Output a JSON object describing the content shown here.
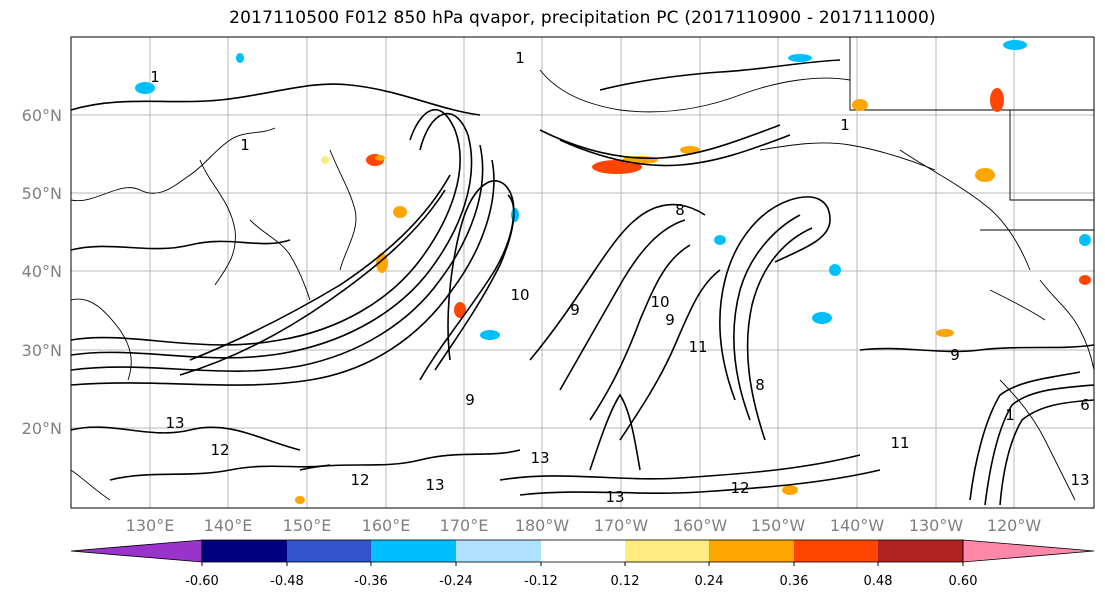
{
  "title": "2017110500 F012 850 hPa qvapor, precipitation PC (2017110900 - 2017111000)",
  "map": {
    "lat_labels": [
      "60°N",
      "50°N",
      "40°N",
      "30°N",
      "20°N"
    ],
    "lon_labels": [
      "130°E",
      "140°E",
      "150°E",
      "160°E",
      "170°E",
      "180°W",
      "170°W",
      "160°W",
      "150°W",
      "140°W",
      "130°W",
      "120°W"
    ],
    "contour_labels": [
      "1",
      "1",
      "1",
      "1",
      "1",
      "9",
      "10",
      "9",
      "11",
      "8",
      "9",
      "13",
      "13",
      "12",
      "12",
      "13",
      "13",
      "12",
      "11",
      "9",
      "13",
      "6",
      "8",
      "10"
    ]
  },
  "colorbar": {
    "colors": [
      "#9933cc",
      "#000080",
      "#3355cc",
      "#00bfff",
      "#b0e0ff",
      "#ffffff",
      "#ffeb80",
      "#ffa500",
      "#ff4500",
      "#b22222",
      "#ff88aa"
    ],
    "tick_labels": [
      "-0.60",
      "-0.48",
      "-0.36",
      "-0.24",
      "-0.12",
      "0.12",
      "0.24",
      "0.36",
      "0.48",
      "0.60"
    ]
  }
}
